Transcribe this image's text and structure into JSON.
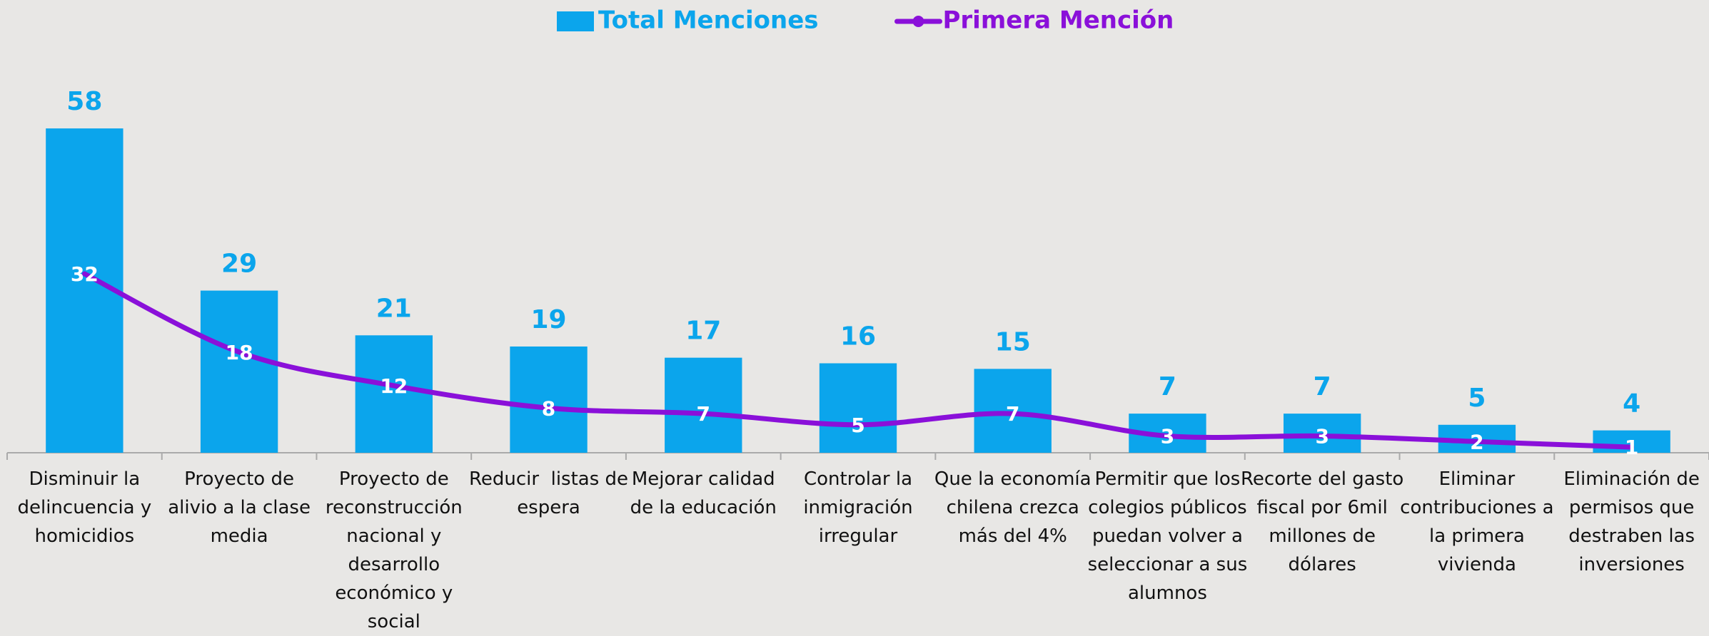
{
  "chart_data": {
    "type": "bar_line",
    "categories": [
      "Disminuir la delincuencia y homicidios",
      "Proyecto de alivio a la clase media",
      "Proyecto de reconstrucción nacional y desarrollo económico y social",
      "Reducir  listas de espera",
      "Mejorar calidad de la educación",
      "Controlar la inmigración irregular",
      "Que la economía chilena crezca más del 4%",
      "Permitir que los colegios públicos puedan volver a seleccionar a sus alumnos",
      "Recorte del gasto fiscal por 6mil millones de dólares",
      "Eliminar contribuciones a la primera vivienda",
      "Eliminación de permisos que destraben las inversiones"
    ],
    "series": [
      {
        "name": "Total Menciones",
        "type": "bar",
        "color": "#0ba5ec",
        "values": [
          58,
          29,
          21,
          19,
          17,
          16,
          15,
          7,
          7,
          5,
          4
        ]
      },
      {
        "name": "Primera Mención",
        "type": "line",
        "color": "#8a10d9",
        "values": [
          32,
          18,
          12,
          8,
          7,
          5,
          7,
          3,
          3,
          2,
          1
        ]
      }
    ],
    "ylim": [
      0,
      70
    ],
    "legend": "top"
  }
}
